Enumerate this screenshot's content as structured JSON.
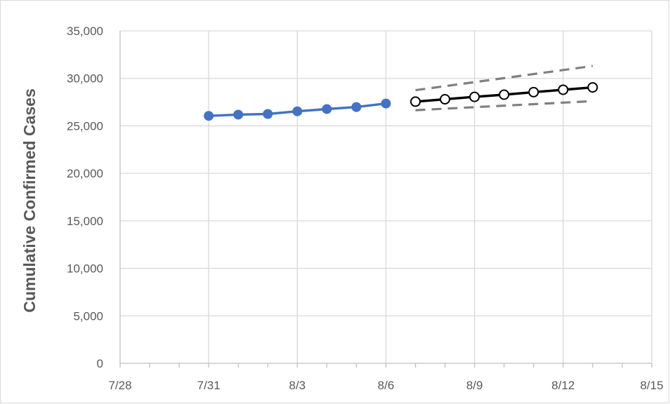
{
  "chart_data": {
    "type": "line",
    "title": "",
    "xlabel": "",
    "ylabel": "Cumulative Confirmed Cases",
    "x_ticks": [
      "7/28",
      "7/31",
      "8/3",
      "8/6",
      "8/9",
      "8/12",
      "8/15"
    ],
    "x_range": [
      "7/28",
      "8/15"
    ],
    "ylim": [
      0,
      35000
    ],
    "y_ticks": [
      "0",
      "5,000",
      "10,000",
      "15,000",
      "20,000",
      "25,000",
      "30,000",
      "35,000"
    ],
    "grid": "vertical and horizontal major gridlines",
    "legend": "none",
    "series": [
      {
        "style": "solid line, filled circle markers",
        "color": "#4472C4",
        "points": [
          {
            "x": "7/31",
            "y": 26050
          },
          {
            "x": "8/1",
            "y": 26180
          },
          {
            "x": "8/2",
            "y": 26250
          },
          {
            "x": "8/3",
            "y": 26530
          },
          {
            "x": "8/4",
            "y": 26770
          },
          {
            "x": "8/5",
            "y": 26980
          },
          {
            "x": "8/6",
            "y": 27350
          }
        ]
      },
      {
        "style": "solid line, hollow circle markers",
        "color": "#000000",
        "points": [
          {
            "x": "8/7",
            "y": 27550
          },
          {
            "x": "8/8",
            "y": 27800
          },
          {
            "x": "8/9",
            "y": 28050
          },
          {
            "x": "8/10",
            "y": 28280
          },
          {
            "x": "8/11",
            "y": 28550
          },
          {
            "x": "8/12",
            "y": 28800
          },
          {
            "x": "8/13",
            "y": 29050
          }
        ]
      },
      {
        "style": "dashed line, no markers",
        "color": "#808080",
        "points": [
          {
            "x": "8/7",
            "y": 28750
          },
          {
            "x": "8/13",
            "y": 31300
          }
        ]
      },
      {
        "style": "dashed line, no markers",
        "color": "#808080",
        "points": [
          {
            "x": "8/7",
            "y": 26650
          },
          {
            "x": "8/13",
            "y": 27600
          }
        ]
      }
    ]
  }
}
